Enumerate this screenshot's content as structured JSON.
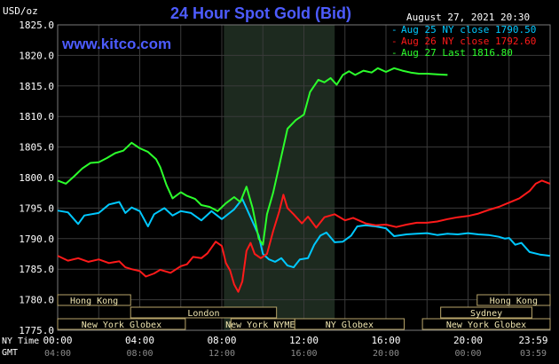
{
  "header": {
    "title": "24 Hour Spot Gold (Bid)",
    "unit_label": "USD/oz",
    "timestamp": "August 27, 2021 20:30",
    "watermark": "www.kitco.com"
  },
  "legend": [
    {
      "label": "Aug 25 NY close 1790.50",
      "color": "#00c8ff"
    },
    {
      "label": "Aug 26 NY close 1792.60",
      "color": "#ff1a1a"
    },
    {
      "label": "Aug 27 Last 1816.80",
      "color": "#2cff2c"
    }
  ],
  "sessions": {
    "row1": [
      {
        "label": "Hong Kong",
        "from": 0,
        "to": 4
      },
      {
        "label": "Hong Kong",
        "from": 23,
        "to": 27
      }
    ],
    "row2": [
      {
        "label": "London",
        "from": 4,
        "to": 12
      },
      {
        "label": "Sydney",
        "from": 21,
        "to": 26
      }
    ],
    "row3": [
      {
        "label": "New York Globex",
        "from": 0,
        "to": 7
      },
      {
        "label": "New York NYMEX",
        "from": 9.5,
        "to": 13
      },
      {
        "label": "NY Globex",
        "from": 13,
        "to": 19
      },
      {
        "label": "New York Globex",
        "from": 20,
        "to": 27
      }
    ]
  },
  "time_axis": {
    "row1_label": "NY Time",
    "row2_label": "GMT",
    "ny_ticks": [
      "00:00",
      "04:00",
      "08:00",
      "12:00",
      "16:00",
      "20:00",
      "23:59"
    ],
    "gmt_ticks": [
      "04:00",
      "08:00",
      "12:00",
      "16:00",
      "20:00",
      "00:00",
      "03:59"
    ]
  },
  "chart_data": {
    "type": "line",
    "title": "24 Hour Spot Gold (Bid)",
    "ylabel": "USD/oz",
    "xlabel": "",
    "x_unit": "hours (NY time)",
    "xlim": [
      0,
      24
    ],
    "ylim": [
      1775,
      1825
    ],
    "y_ticks": [
      1775,
      1780,
      1785,
      1790,
      1795,
      1800,
      1805,
      1810,
      1815,
      1820,
      1825
    ],
    "highlight_region_hours": [
      8.1,
      13.5
    ],
    "grid": true,
    "legend_position": "top-right",
    "series": [
      {
        "name": "Aug 25 NY close 1790.50",
        "color": "#00c8ff",
        "points": [
          [
            0,
            1794.6
          ],
          [
            0.5,
            1794.3
          ],
          [
            1,
            1792.4
          ],
          [
            1.3,
            1793.8
          ],
          [
            2,
            1794.2
          ],
          [
            2.5,
            1795.6
          ],
          [
            3,
            1796.0
          ],
          [
            3.3,
            1794.2
          ],
          [
            3.6,
            1795.1
          ],
          [
            4,
            1794.5
          ],
          [
            4.4,
            1792.0
          ],
          [
            4.7,
            1794.0
          ],
          [
            5.2,
            1795.0
          ],
          [
            5.6,
            1793.8
          ],
          [
            6,
            1794.5
          ],
          [
            6.5,
            1794.2
          ],
          [
            7,
            1793.0
          ],
          [
            7.5,
            1794.5
          ],
          [
            8,
            1793.2
          ],
          [
            8.6,
            1794.8
          ],
          [
            9,
            1796.5
          ],
          [
            9.4,
            1793.5
          ],
          [
            9.8,
            1790.5
          ],
          [
            10,
            1787.5
          ],
          [
            10.3,
            1786.6
          ],
          [
            10.6,
            1786.2
          ],
          [
            10.9,
            1786.8
          ],
          [
            11.2,
            1785.6
          ],
          [
            11.5,
            1785.3
          ],
          [
            11.8,
            1786.6
          ],
          [
            12.2,
            1786.8
          ],
          [
            12.5,
            1789.0
          ],
          [
            12.8,
            1790.5
          ],
          [
            13.1,
            1791.0
          ],
          [
            13.5,
            1789.4
          ],
          [
            13.9,
            1789.5
          ],
          [
            14.3,
            1790.5
          ],
          [
            14.6,
            1792.0
          ],
          [
            15,
            1792.2
          ],
          [
            15.5,
            1792.0
          ],
          [
            16,
            1791.7
          ],
          [
            16.4,
            1790.4
          ],
          [
            17,
            1790.7
          ],
          [
            17.5,
            1790.8
          ],
          [
            18,
            1790.9
          ],
          [
            18.5,
            1790.6
          ],
          [
            19,
            1790.8
          ],
          [
            19.5,
            1790.7
          ],
          [
            20,
            1790.9
          ],
          [
            20.5,
            1790.7
          ],
          [
            21,
            1790.6
          ],
          [
            21.5,
            1790.3
          ],
          [
            21.8,
            1790.0
          ],
          [
            22,
            1790.1
          ],
          [
            22.3,
            1789.0
          ],
          [
            22.6,
            1789.3
          ],
          [
            23,
            1787.8
          ],
          [
            23.5,
            1787.4
          ],
          [
            23.99,
            1787.2
          ]
        ]
      },
      {
        "name": "Aug 26 NY close 1792.60",
        "color": "#ff1a1a",
        "points": [
          [
            0,
            1787.2
          ],
          [
            0.5,
            1786.4
          ],
          [
            1,
            1786.8
          ],
          [
            1.5,
            1786.2
          ],
          [
            2,
            1786.6
          ],
          [
            2.5,
            1786.0
          ],
          [
            3,
            1786.3
          ],
          [
            3.3,
            1785.3
          ],
          [
            3.6,
            1785.0
          ],
          [
            4,
            1784.7
          ],
          [
            4.3,
            1783.8
          ],
          [
            4.7,
            1784.3
          ],
          [
            5,
            1784.9
          ],
          [
            5.5,
            1784.4
          ],
          [
            6,
            1785.5
          ],
          [
            6.3,
            1785.8
          ],
          [
            6.6,
            1787.0
          ],
          [
            7,
            1786.8
          ],
          [
            7.3,
            1787.6
          ],
          [
            7.7,
            1789.5
          ],
          [
            8,
            1788.8
          ],
          [
            8.2,
            1786.0
          ],
          [
            8.4,
            1784.8
          ],
          [
            8.6,
            1782.5
          ],
          [
            8.8,
            1781.3
          ],
          [
            9,
            1783.0
          ],
          [
            9.2,
            1788.0
          ],
          [
            9.4,
            1789.3
          ],
          [
            9.6,
            1787.5
          ],
          [
            9.9,
            1786.8
          ],
          [
            10.2,
            1787.5
          ],
          [
            10.5,
            1791.2
          ],
          [
            10.8,
            1794.5
          ],
          [
            11,
            1797.2
          ],
          [
            11.2,
            1795.0
          ],
          [
            11.5,
            1794.0
          ],
          [
            11.9,
            1792.5
          ],
          [
            12.2,
            1793.6
          ],
          [
            12.6,
            1791.8
          ],
          [
            13,
            1793.5
          ],
          [
            13.5,
            1794.0
          ],
          [
            14,
            1793.0
          ],
          [
            14.4,
            1793.4
          ],
          [
            15,
            1792.5
          ],
          [
            15.5,
            1792.2
          ],
          [
            16,
            1792.3
          ],
          [
            16.5,
            1791.9
          ],
          [
            17,
            1792.3
          ],
          [
            17.5,
            1792.6
          ],
          [
            18,
            1792.6
          ],
          [
            18.5,
            1792.8
          ],
          [
            19,
            1793.2
          ],
          [
            19.5,
            1793.5
          ],
          [
            20,
            1793.7
          ],
          [
            20.5,
            1794.1
          ],
          [
            21,
            1794.7
          ],
          [
            21.5,
            1795.2
          ],
          [
            22,
            1795.9
          ],
          [
            22.5,
            1796.6
          ],
          [
            23,
            1797.8
          ],
          [
            23.3,
            1799.0
          ],
          [
            23.6,
            1799.5
          ],
          [
            23.99,
            1799.0
          ]
        ]
      },
      {
        "name": "Aug 27 Last 1816.80",
        "color": "#2cff2c",
        "points": [
          [
            0,
            1799.5
          ],
          [
            0.4,
            1799.0
          ],
          [
            0.8,
            1800.2
          ],
          [
            1.2,
            1801.5
          ],
          [
            1.6,
            1802.4
          ],
          [
            2,
            1802.5
          ],
          [
            2.4,
            1803.2
          ],
          [
            2.8,
            1804.0
          ],
          [
            3.2,
            1804.4
          ],
          [
            3.6,
            1805.7
          ],
          [
            4,
            1804.8
          ],
          [
            4.4,
            1804.2
          ],
          [
            4.8,
            1803.0
          ],
          [
            5,
            1801.7
          ],
          [
            5.3,
            1798.8
          ],
          [
            5.6,
            1796.6
          ],
          [
            6,
            1797.6
          ],
          [
            6.3,
            1797.0
          ],
          [
            6.7,
            1796.5
          ],
          [
            7,
            1795.5
          ],
          [
            7.4,
            1795.2
          ],
          [
            7.8,
            1794.5
          ],
          [
            8.2,
            1795.8
          ],
          [
            8.6,
            1796.8
          ],
          [
            8.9,
            1796.0
          ],
          [
            9.2,
            1798.5
          ],
          [
            9.5,
            1795.0
          ],
          [
            9.8,
            1790.0
          ],
          [
            10,
            1789.0
          ],
          [
            10.2,
            1794.0
          ],
          [
            10.5,
            1797.5
          ],
          [
            10.8,
            1802.0
          ],
          [
            11.2,
            1808.0
          ],
          [
            11.6,
            1809.4
          ],
          [
            12,
            1810.3
          ],
          [
            12.3,
            1814.0
          ],
          [
            12.7,
            1816.0
          ],
          [
            13,
            1815.6
          ],
          [
            13.3,
            1816.3
          ],
          [
            13.6,
            1815.2
          ],
          [
            13.9,
            1816.8
          ],
          [
            14.2,
            1817.4
          ],
          [
            14.5,
            1816.8
          ],
          [
            14.9,
            1817.5
          ],
          [
            15.3,
            1817.2
          ],
          [
            15.6,
            1817.9
          ],
          [
            16,
            1817.3
          ],
          [
            16.4,
            1817.9
          ],
          [
            16.8,
            1817.5
          ],
          [
            17.2,
            1817.2
          ],
          [
            17.6,
            1817.0
          ],
          [
            18,
            1817.0
          ],
          [
            18.5,
            1816.9
          ],
          [
            19,
            1816.8
          ]
        ]
      }
    ]
  }
}
